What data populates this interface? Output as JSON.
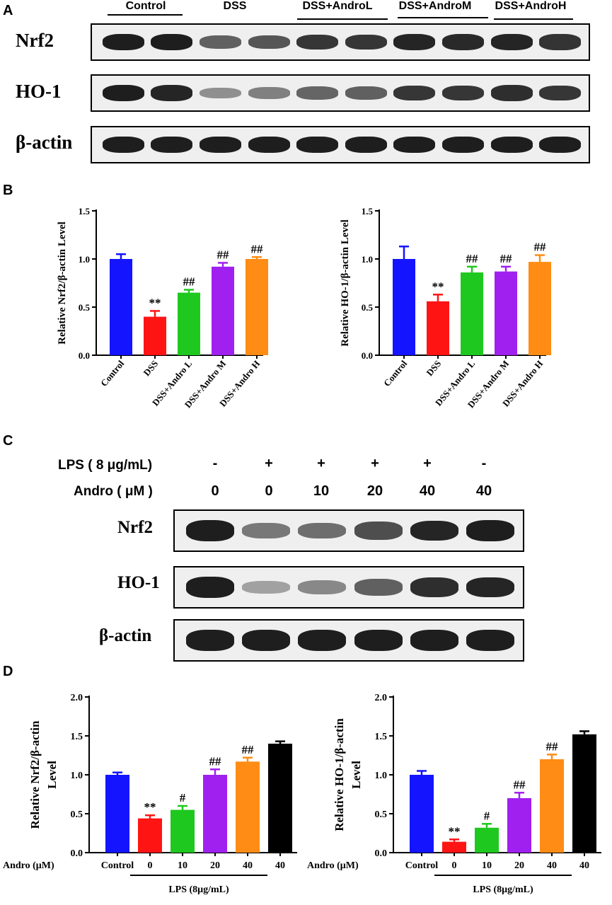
{
  "panels": {
    "a": "A",
    "b": "B",
    "c": "C",
    "d": "D"
  },
  "blotA": {
    "lane_groups": [
      "Control",
      "DSS",
      "DSS+AndroL",
      "DSS+AndroM",
      "DSS+AndroH"
    ],
    "rows": [
      {
        "label": "Nrf2",
        "intensity": [
          0.95,
          0.95,
          0.55,
          0.6,
          0.8,
          0.8,
          0.9,
          0.88,
          0.9,
          0.82
        ]
      },
      {
        "label": "HO-1",
        "intensity": [
          0.95,
          0.9,
          0.25,
          0.35,
          0.5,
          0.55,
          0.8,
          0.8,
          0.85,
          0.8
        ]
      },
      {
        "label": "β-actin",
        "intensity": [
          0.95,
          0.95,
          0.95,
          0.95,
          0.95,
          0.95,
          0.95,
          0.95,
          0.95,
          0.95
        ]
      }
    ]
  },
  "blotC": {
    "conditions": [
      {
        "label": "LPS ( 8 μg/mL)",
        "values": [
          "-",
          "+",
          "+",
          "+",
          "+",
          "-"
        ]
      },
      {
        "label": "Andro ( μM )",
        "values": [
          "0",
          "0",
          "10",
          "20",
          "40",
          "40"
        ]
      }
    ],
    "rows": [
      {
        "label": "Nrf2",
        "intensity": [
          0.95,
          0.4,
          0.45,
          0.65,
          0.9,
          0.95
        ]
      },
      {
        "label": "HO-1",
        "intensity": [
          0.95,
          0.15,
          0.3,
          0.55,
          0.85,
          0.9
        ]
      },
      {
        "label": "β-actin",
        "intensity": [
          0.95,
          0.95,
          0.95,
          0.95,
          0.95,
          0.95
        ]
      }
    ]
  },
  "chart_data": [
    {
      "type": "bar",
      "ylabel": "Relative Nrf2/β-actin Level",
      "ylim": [
        0,
        1.5
      ],
      "yticks": [
        "0.0",
        "0.5",
        "1.0",
        "1.5"
      ],
      "categories": [
        "Control",
        "DSS",
        "DSS+Andro L",
        "DSS+Andro M",
        "DSS+Andro H"
      ],
      "values": [
        1.0,
        0.4,
        0.65,
        0.92,
        1.0
      ],
      "errors": [
        0.05,
        0.06,
        0.03,
        0.04,
        0.02
      ],
      "annotations": [
        "",
        "**",
        "##",
        "##",
        "##"
      ],
      "colors": [
        "#1414ff",
        "#ff1414",
        "#1fc81f",
        "#a020f0",
        "#ff8c14"
      ]
    },
    {
      "type": "bar",
      "ylabel": "Relative HO-1/β-actin Level",
      "ylim": [
        0,
        1.5
      ],
      "yticks": [
        "0.0",
        "0.5",
        "1.0",
        "1.5"
      ],
      "categories": [
        "Control",
        "DSS",
        "DSS+Andro L",
        "DSS+Andro M",
        "DSS+Andro H"
      ],
      "values": [
        1.0,
        0.56,
        0.86,
        0.87,
        0.97
      ],
      "errors": [
        0.13,
        0.07,
        0.06,
        0.05,
        0.07
      ],
      "annotations": [
        "",
        "**",
        "##",
        "##",
        "##"
      ],
      "colors": [
        "#1414ff",
        "#ff1414",
        "#1fc81f",
        "#a020f0",
        "#ff8c14"
      ]
    },
    {
      "type": "bar",
      "ylabel": "Relative Nrf2/β-actin Level",
      "ylim": [
        0,
        2.0
      ],
      "yticks": [
        "0.0",
        "0.5",
        "1.0",
        "1.5",
        "2.0"
      ],
      "xprefix": "Andro (μM)",
      "categories": [
        "Control",
        "0",
        "10",
        "20",
        "40",
        "40"
      ],
      "values": [
        1.0,
        0.44,
        0.55,
        1.0,
        1.17,
        1.4
      ],
      "errors": [
        0.03,
        0.04,
        0.05,
        0.07,
        0.05,
        0.03
      ],
      "annotations": [
        "",
        "**",
        "#",
        "##",
        "##",
        ""
      ],
      "colors": [
        "#1414ff",
        "#ff1414",
        "#1fc81f",
        "#a020f0",
        "#ff8c14",
        "#000000"
      ],
      "group_label": "LPS (8μg/mL)"
    },
    {
      "type": "bar",
      "ylabel": "Relative HO-1/β-actin Level",
      "ylim": [
        0,
        2.0
      ],
      "yticks": [
        "0.0",
        "0.5",
        "1.0",
        "1.5",
        "2.0"
      ],
      "xprefix": "Andro (μM)",
      "categories": [
        "Control",
        "0",
        "10",
        "20",
        "40",
        "40"
      ],
      "values": [
        1.0,
        0.14,
        0.32,
        0.7,
        1.2,
        1.52
      ],
      "errors": [
        0.05,
        0.03,
        0.05,
        0.07,
        0.06,
        0.04
      ],
      "annotations": [
        "",
        "**",
        "#",
        "##",
        "##",
        ""
      ],
      "colors": [
        "#1414ff",
        "#ff1414",
        "#1fc81f",
        "#a020f0",
        "#ff8c14",
        "#000000"
      ],
      "group_label": "LPS (8μg/mL)"
    }
  ]
}
